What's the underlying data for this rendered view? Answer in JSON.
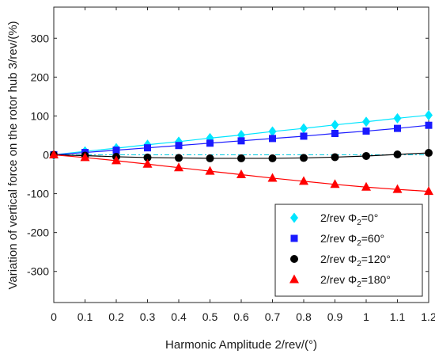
{
  "chart_data": {
    "type": "line",
    "xlabel": "Harmonic Amplitude 2/rev/(°)",
    "ylabel": "Variation of vertical force on the rotor hub 3/rev/(%)",
    "x": [
      0,
      0.1,
      0.2,
      0.3,
      0.4,
      0.5,
      0.6,
      0.7,
      0.8,
      0.9,
      1,
      1.1,
      1.2
    ],
    "xticks": [
      "0",
      "0.1",
      "0.2",
      "0.3",
      "0.4",
      "0.5",
      "0.6",
      "0.7",
      "0.8",
      "0.9",
      "1",
      "1.1",
      "1.2"
    ],
    "yticks": [
      "300",
      "200",
      "100",
      "0",
      "-100",
      "-200",
      "-300"
    ],
    "xlim": [
      0,
      1.2
    ],
    "ylim": [
      -380,
      380
    ],
    "grid": false,
    "legend_position": "bottom-right",
    "series": [
      {
        "name": "2/rev Φ2=0°",
        "label_prefix": "2/rev  Φ",
        "label_sub": "2",
        "label_suffix": "=0°",
        "color": "#00e5ff",
        "marker": "diamond",
        "values": [
          0,
          9,
          17,
          26,
          34,
          43,
          51,
          60,
          68,
          77,
          85,
          94,
          102
        ]
      },
      {
        "name": "2/rev Φ2=60°",
        "label_prefix": "2/rev  Φ",
        "label_sub": "2",
        "label_suffix": "=60°",
        "color": "#1a1aff",
        "marker": "square",
        "values": [
          0,
          6,
          12,
          18,
          24,
          30,
          36,
          42,
          48,
          55,
          61,
          68,
          76
        ]
      },
      {
        "name": "2/rev Φ2=120°",
        "label_prefix": "2/rev  Φ",
        "label_sub": "2",
        "label_suffix": "=120°",
        "color": "#000000",
        "marker": "circle",
        "values": [
          0,
          -2,
          -5,
          -7,
          -8,
          -9,
          -9,
          -9,
          -8,
          -6,
          -3,
          1,
          5
        ]
      },
      {
        "name": "2/rev Φ2=180°",
        "label_prefix": "2/rev  Φ",
        "label_sub": "2",
        "label_suffix": "=180°",
        "color": "#ff0000",
        "marker": "triangle",
        "values": [
          0,
          -7,
          -15,
          -24,
          -33,
          -42,
          -51,
          -60,
          -68,
          -76,
          -83,
          -89,
          -94
        ]
      }
    ]
  }
}
